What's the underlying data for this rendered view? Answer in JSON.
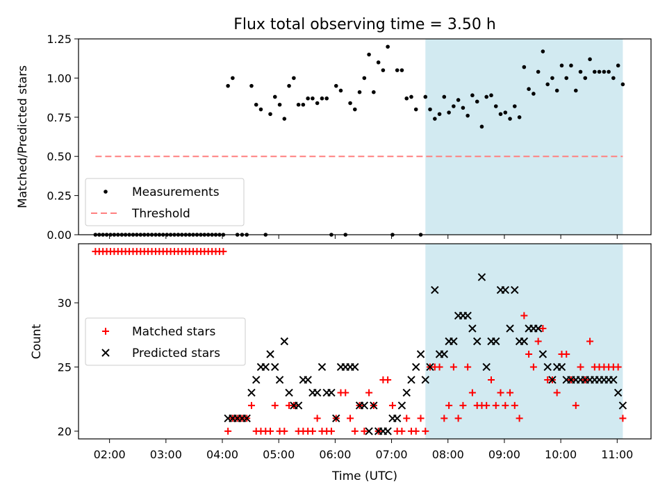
{
  "chart_data": [
    {
      "type": "scatter",
      "title": "Flux total observing time = 3.50 h",
      "xlabel": "",
      "ylabel": "Matched/Predicted stars",
      "xlim": [
        1.45,
        11.6
      ],
      "ylim": [
        0.0,
        1.25
      ],
      "x_ticks": [
        2,
        3,
        4,
        5,
        6,
        7,
        8,
        9,
        10,
        11
      ],
      "y_ticks": [
        0.0,
        0.25,
        0.5,
        0.75,
        1.0,
        1.25
      ],
      "y_tick_labels": [
        "0.00",
        "0.25",
        "0.50",
        "0.75",
        "1.00",
        "1.25"
      ],
      "shaded_region": {
        "x0": 7.6,
        "x1": 11.1,
        "color": "#add8e6"
      },
      "grid": false,
      "legend_position": "lower-left",
      "legend": [
        "Measurements",
        "Threshold"
      ],
      "series": [
        {
          "name": "Measurements",
          "marker": "dot",
          "color": "#000000",
          "x": [
            1.75,
            1.817,
            1.883,
            1.95,
            2.017,
            2.083,
            2.15,
            2.217,
            2.283,
            2.35,
            2.417,
            2.483,
            2.55,
            2.617,
            2.683,
            2.75,
            2.817,
            2.883,
            2.95,
            3.017,
            3.083,
            3.15,
            3.217,
            3.283,
            3.35,
            3.417,
            3.483,
            3.55,
            3.617,
            3.683,
            3.75,
            3.817,
            3.883,
            3.95,
            4.017,
            4.1,
            4.183,
            4.267,
            4.35,
            4.433,
            4.517,
            4.6,
            4.683,
            4.767,
            4.85,
            4.933,
            5.017,
            5.1,
            5.183,
            5.267,
            5.35,
            5.433,
            5.517,
            5.6,
            5.683,
            5.767,
            5.85,
            5.933,
            6.017,
            6.1,
            6.183,
            6.267,
            6.35,
            6.433,
            6.517,
            6.6,
            6.683,
            6.767,
            6.85,
            6.933,
            7.017,
            7.1,
            7.183,
            7.267,
            7.35,
            7.433,
            7.517,
            7.6,
            7.683,
            7.767,
            7.85,
            7.933,
            8.017,
            8.1,
            8.183,
            8.267,
            8.35,
            8.433,
            8.517,
            8.6,
            8.683,
            8.767,
            8.85,
            8.933,
            9.017,
            9.1,
            9.183,
            9.267,
            9.35,
            9.433,
            9.517,
            9.6,
            9.683,
            9.767,
            9.85,
            9.933,
            10.017,
            10.1,
            10.183,
            10.267,
            10.35,
            10.433,
            10.517,
            10.6,
            10.683,
            10.767,
            10.85,
            10.933,
            11.017,
            11.1
          ],
          "y": [
            0,
            0,
            0,
            0,
            0,
            0,
            0,
            0,
            0,
            0,
            0,
            0,
            0,
            0,
            0,
            0,
            0,
            0,
            0,
            0,
            0,
            0,
            0,
            0,
            0,
            0,
            0,
            0,
            0,
            0,
            0,
            0,
            0,
            0,
            0,
            0.95,
            1.0,
            0,
            0,
            0,
            0.95,
            0.83,
            0.8,
            0,
            0.77,
            0.88,
            0.83,
            0.74,
            0.95,
            1.0,
            0.83,
            0.83,
            0.87,
            0.87,
            0.84,
            0.87,
            0.87,
            0,
            0.95,
            0.92,
            0,
            0.84,
            0.8,
            0.91,
            1.0,
            1.15,
            0.91,
            1.1,
            1.05,
            1.2,
            0,
            1.05,
            1.05,
            0.87,
            0.88,
            0.8,
            0,
            0.88,
            0.8,
            0.74,
            0.77,
            0.88,
            0.78,
            0.82,
            0.86,
            0.81,
            0.76,
            0.89,
            0.85,
            0.69,
            0.88,
            0.89,
            0.82,
            0.77,
            0.78,
            0.74,
            0.82,
            0.75,
            1.07,
            0.93,
            0.9,
            1.04,
            1.17,
            0.96,
            1.0,
            0.92,
            1.08,
            1.0,
            1.08,
            0.92,
            1.04,
            1.0,
            1.12,
            1.04,
            1.04,
            1.04,
            1.04,
            1.0,
            1.08,
            0.96
          ]
        },
        {
          "name": "Threshold",
          "style": "dashed",
          "color": "#ff7f7f",
          "x": [
            1.75,
            11.1
          ],
          "y": [
            0.5,
            0.5
          ]
        }
      ]
    },
    {
      "type": "scatter",
      "title": "",
      "xlabel": "Time (UTC)",
      "ylabel": "Count",
      "xlim": [
        1.45,
        11.6
      ],
      "ylim": [
        19.4,
        34.6
      ],
      "x_ticks": [
        2,
        3,
        4,
        5,
        6,
        7,
        8,
        9,
        10,
        11
      ],
      "x_tick_labels": [
        "02:00",
        "03:00",
        "04:00",
        "05:00",
        "06:00",
        "07:00",
        "08:00",
        "09:00",
        "10:00",
        "11:00"
      ],
      "y_ticks": [
        20,
        25,
        30
      ],
      "y_tick_labels": [
        "20",
        "25",
        "30"
      ],
      "shaded_region": {
        "x0": 7.6,
        "x1": 11.1,
        "color": "#add8e6"
      },
      "grid": false,
      "legend_position": "center-left",
      "legend": [
        "Matched stars",
        "Predicted stars"
      ],
      "series": [
        {
          "name": "Matched stars",
          "marker": "plus",
          "color": "#ff0000",
          "x": [
            1.75,
            1.817,
            1.883,
            1.95,
            2.017,
            2.083,
            2.15,
            2.217,
            2.283,
            2.35,
            2.417,
            2.483,
            2.55,
            2.617,
            2.683,
            2.75,
            2.817,
            2.883,
            2.95,
            3.017,
            3.083,
            3.15,
            3.217,
            3.283,
            3.35,
            3.417,
            3.483,
            3.55,
            3.617,
            3.683,
            3.75,
            3.817,
            3.883,
            3.95,
            4.017,
            4.1,
            4.183,
            4.267,
            4.35,
            4.433,
            4.517,
            4.6,
            4.683,
            4.767,
            4.85,
            4.933,
            5.017,
            5.1,
            5.183,
            5.267,
            5.35,
            5.433,
            5.517,
            5.6,
            5.683,
            5.767,
            5.85,
            5.933,
            6.017,
            6.1,
            6.183,
            6.267,
            6.35,
            6.433,
            6.517,
            6.6,
            6.683,
            6.767,
            6.85,
            6.933,
            7.017,
            7.1,
            7.183,
            7.267,
            7.35,
            7.433,
            7.517,
            7.6,
            7.683,
            7.767,
            7.85,
            7.933,
            8.017,
            8.1,
            8.183,
            8.267,
            8.35,
            8.433,
            8.517,
            8.6,
            8.683,
            8.767,
            8.85,
            8.933,
            9.017,
            9.1,
            9.183,
            9.267,
            9.35,
            9.433,
            9.517,
            9.6,
            9.683,
            9.767,
            9.85,
            9.933,
            10.017,
            10.1,
            10.183,
            10.267,
            10.35,
            10.433,
            10.517,
            10.6,
            10.683,
            10.767,
            10.85,
            10.933,
            11.017,
            11.1
          ],
          "y": [
            34,
            34,
            34,
            34,
            34,
            34,
            34,
            34,
            34,
            34,
            34,
            34,
            34,
            34,
            34,
            34,
            34,
            34,
            34,
            34,
            34,
            34,
            34,
            34,
            34,
            34,
            34,
            34,
            34,
            34,
            34,
            34,
            34,
            34,
            34,
            20,
            21,
            21,
            21,
            21,
            22,
            20,
            20,
            20,
            20,
            22,
            20,
            20,
            22,
            22,
            20,
            20,
            20,
            20,
            21,
            20,
            20,
            20,
            21,
            23,
            23,
            21,
            20,
            22,
            20,
            23,
            22,
            20,
            24,
            24,
            22,
            20,
            20,
            21,
            20,
            20,
            21,
            20,
            25,
            25,
            25,
            21,
            22,
            25,
            21,
            22,
            25,
            23,
            22,
            22,
            22,
            24,
            22,
            23,
            22,
            23,
            22,
            21,
            29,
            26,
            25,
            27,
            28,
            24,
            24,
            23,
            26,
            26,
            24,
            22,
            25,
            24,
            27,
            25,
            25,
            25,
            25,
            25,
            25,
            21
          ]
        },
        {
          "name": "Predicted stars",
          "marker": "x",
          "color": "#000000",
          "x": [
            4.1,
            4.183,
            4.267,
            4.35,
            4.433,
            4.517,
            4.6,
            4.683,
            4.767,
            4.85,
            4.933,
            5.017,
            5.1,
            5.183,
            5.267,
            5.35,
            5.433,
            5.517,
            5.6,
            5.683,
            5.767,
            5.85,
            5.933,
            6.017,
            6.1,
            6.183,
            6.267,
            6.35,
            6.433,
            6.517,
            6.6,
            6.683,
            6.767,
            6.85,
            6.933,
            7.017,
            7.1,
            7.183,
            7.267,
            7.35,
            7.433,
            7.517,
            7.6,
            7.683,
            7.767,
            7.85,
            7.933,
            8.017,
            8.1,
            8.183,
            8.267,
            8.35,
            8.433,
            8.517,
            8.6,
            8.683,
            8.767,
            8.85,
            8.933,
            9.017,
            9.1,
            9.183,
            9.267,
            9.35,
            9.433,
            9.517,
            9.6,
            9.683,
            9.767,
            9.85,
            9.933,
            10.017,
            10.1,
            10.183,
            10.267,
            10.35,
            10.433,
            10.517,
            10.6,
            10.683,
            10.767,
            10.85,
            10.933,
            11.017,
            11.1
          ],
          "y": [
            21,
            21,
            21,
            21,
            21,
            23,
            24,
            25,
            25,
            26,
            25,
            24,
            27,
            23,
            22,
            22,
            24,
            24,
            23,
            23,
            25,
            23,
            23,
            21,
            25,
            25,
            25,
            25,
            22,
            22,
            20,
            22,
            20,
            20,
            20,
            21,
            21,
            22,
            23,
            24,
            25,
            26,
            24,
            25,
            31,
            26,
            26,
            27,
            27,
            29,
            29,
            29,
            28,
            27,
            32,
            25,
            27,
            27,
            31,
            31,
            28,
            31,
            27,
            27,
            28,
            28,
            28,
            26,
            25,
            24,
            25,
            25,
            24,
            24,
            24,
            24,
            24,
            24,
            24,
            24,
            24,
            24,
            24,
            23,
            22
          ]
        }
      ]
    }
  ]
}
